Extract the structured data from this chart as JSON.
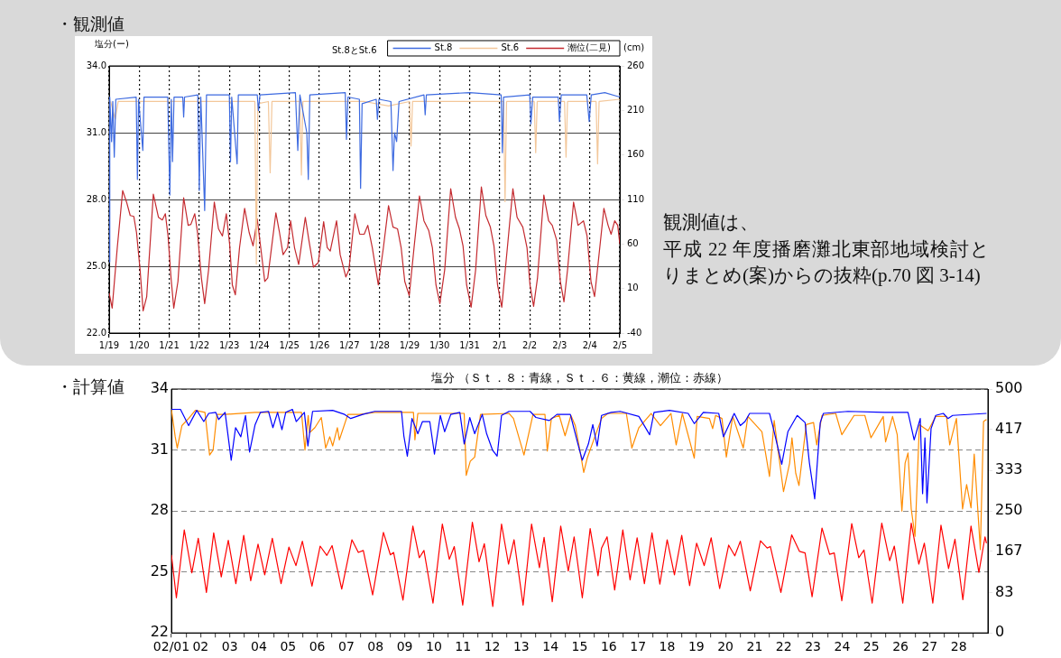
{
  "chart_data": [
    {
      "type": "line",
      "ylabel": "塩分(ー)",
      "y2label": "(cm)",
      "legend_title": "St.8とSt.6",
      "legend": "top right",
      "grid": true,
      "annotations": [
        "・観測値",
        "観測値は、",
        "平成 22 年度播磨灘北東部地域検討とりまとめ(案)からの抜粋(p.70 図 3-14)"
      ],
      "xlim": [
        "--01-19",
        "--02-05"
      ],
      "xticks": [
        {
          "value": "--01-19",
          "label": "1/19"
        },
        {
          "value": "--01-20",
          "label": "1/20"
        },
        {
          "value": "--01-21",
          "label": "1/21"
        },
        {
          "value": "--01-22",
          "label": "1/22"
        },
        {
          "value": "--01-23",
          "label": "1/23"
        },
        {
          "value": "--01-24",
          "label": "1/24"
        },
        {
          "value": "--01-25",
          "label": "1/25"
        },
        {
          "value": "--01-26",
          "label": "1/26"
        },
        {
          "value": "--01-27",
          "label": "1/27"
        },
        {
          "value": "--01-28",
          "label": "1/28"
        },
        {
          "value": "--01-29",
          "label": "1/29"
        },
        {
          "value": "--01-30",
          "label": "1/30"
        },
        {
          "value": "--01-31",
          "label": "1/31"
        },
        {
          "value": "--02-01",
          "label": "2/1"
        },
        {
          "value": "--02-02",
          "label": "2/2"
        },
        {
          "value": "--02-03",
          "label": "2/3"
        },
        {
          "value": "--02-04",
          "label": "2/4"
        },
        {
          "value": "--02-05",
          "label": "2/5"
        }
      ],
      "ylim": [
        22,
        34
      ],
      "yticks": [
        {
          "value": 22,
          "label": "22.0"
        },
        {
          "value": 25,
          "label": "25.0"
        },
        {
          "value": 28,
          "label": "28.0"
        },
        {
          "value": 31,
          "label": "31.0"
        },
        {
          "value": 34,
          "label": "34.0"
        }
      ],
      "y2lim": [
        -40,
        260
      ],
      "y2ticks": [
        -40,
        10,
        60,
        110,
        160,
        210,
        260
      ],
      "series": [
        {
          "name": "St.8",
          "color": "#3d6ae0",
          "x": [
            "--01-19",
            "--01-19T00:29",
            "--01-19T01:55",
            "--01-19T02:53",
            "--01-19T04:05",
            "--01-19T05:17",
            "--01-19T21:36",
            "--01-19T22:34",
            "--01-19T23:31",
            "--01-20T02:53",
            "--01-20T03:50",
            "--01-20T22:48",
            "--01-21T00:29",
            "--01-21T01:41",
            "--01-21T02:38",
            "--01-21T03:50",
            "--01-21T10:48",
            "--01-21T11:31",
            "--01-21T12:14",
            "--01-21T22:48",
            "--01-22",
            "--01-22T01:12",
            "--01-22T04:19",
            "--01-22T05:46",
            "--01-23",
            "--01-23T00:58",
            "--01-23T01:55",
            "--01-23T06:14",
            "--01-23T07:12",
            "--01-23T22:19",
            "--01-23T23:17",
            "--01-24T00:29",
            "--01-25T04:48",
            "--01-25T06:43",
            "--01-25T08:24",
            "--01-25T13:55",
            "--01-25T15:07",
            "--01-25T16:19",
            "--01-26T20:38",
            "--01-26T21:36",
            "--01-26T22:48",
            "--01-27T07:55",
            "--01-27T08:53",
            "--01-27T10:05",
            "--01-27T21:22",
            "--01-27T22:19",
            "--01-27T23:31",
            "--01-28T09:07",
            "--01-28T10:48",
            "--01-28T12:00",
            "--01-28T13:41",
            "--01-28T15:36",
            "--01-29T11:31",
            "--01-29T12:29",
            "--01-29T13:26",
            "--01-31",
            "--02-01T01:12",
            "--02-01T02:10",
            "--02-01T03:07",
            "--02-02",
            "--02-02T00:58",
            "--02-02T02:24",
            "--02-02T22:48",
            "--02-02T23:46",
            "--02-03T01:12",
            "--02-03T21:36",
            "--02-03T23:31",
            "--02-04T01:12",
            "--02-04T12:00",
            "--02-05"
          ],
          "values": [
            25.2,
            32.6,
            30.6,
            32.4,
            29.9,
            32.5,
            32.6,
            28.9,
            32.5,
            30.2,
            32.6,
            32.6,
            28.2,
            32.5,
            29.7,
            32.6,
            32.6,
            31.7,
            32.6,
            32.7,
            28.4,
            32.6,
            27.5,
            32.7,
            32.7,
            29.7,
            32.6,
            29.6,
            32.7,
            32.7,
            32,
            32.7,
            32.8,
            30.2,
            32.7,
            31,
            28.9,
            32.7,
            32.8,
            30.7,
            32.6,
            32.5,
            28.5,
            32.3,
            32.5,
            31.6,
            32.5,
            32.4,
            29.3,
            31,
            30.6,
            32.4,
            32.7,
            31.8,
            32.7,
            32.8,
            32.7,
            30.1,
            32.6,
            32.7,
            31.4,
            32.6,
            32.6,
            31.5,
            32.7,
            32.7,
            31.5,
            32.7,
            32.8,
            32.6
          ]
        },
        {
          "name": "St.6",
          "color": "#f3c79a",
          "x": [
            "--01-19T01:12",
            "--01-19T04:48",
            "--01-19T07:12",
            "--01-22",
            "--01-23T20:24",
            "--01-23T21:36",
            "--01-23T22:48",
            "--01-24T07:12",
            "--01-24T08:38",
            "--01-24T10:05",
            "--01-25T08:24",
            "--01-25T09:36",
            "--01-25T10:48",
            "--01-27T12:00",
            "--01-28T07:12",
            "--01-29",
            "--01-29T01:12",
            "--01-29T02:24",
            "--02-01T03:07",
            "--02-01T04:19",
            "--02-01T05:31",
            "--02-02T03:36",
            "--02-02T04:48",
            "--02-02T06:00",
            "--02-03T03:50",
            "--02-03T05:02",
            "--02-03T06:14",
            "--02-04T05:02",
            "--02-04T06:14",
            "--02-04T07:26",
            "--02-05"
          ],
          "values": [
            32.4,
            31.6,
            32.4,
            32.4,
            32.4,
            25.1,
            32.3,
            32.4,
            29.2,
            32.4,
            32.4,
            29.1,
            32.4,
            32.4,
            32.2,
            32.4,
            30.4,
            32.4,
            32.4,
            27.9,
            32.4,
            32.4,
            30.1,
            32.4,
            32.4,
            29.9,
            32.4,
            32.4,
            29.6,
            32.4,
            32.5
          ]
        },
        {
          "name": "潮位(二見)",
          "color": "#c42a2f",
          "axis": "y2",
          "x": [
            "--01-19",
            "--01-19T02:24",
            "--01-19T06:29",
            "--01-19T10:48",
            "--01-19T13:55",
            "--01-19T16:48",
            "--01-19T19:41",
            "--01-19T21:50",
            "--01-20T00:43",
            "--01-20T03:07",
            "--01-20T06:00",
            "--01-20T11:17",
            "--01-20T15:22",
            "--01-20T18:29",
            "--01-20T20:53",
            "--01-20T23:02",
            "--01-21T01:26",
            "--01-21T03:36",
            "--01-21T06:58",
            "--01-21T11:31",
            "--01-21T15:07",
            "--01-21T17:17",
            "--01-21T20:24",
            "--01-21T22:34",
            "--01-22T01:41",
            "--01-22T04:19",
            "--01-22T07:26",
            "--01-22T12:00",
            "--01-22T15:22",
            "--01-22T18:29",
            "--01-22T21:36",
            "--01-23T00:14",
            "--01-23T02:24",
            "--01-23T04:48",
            "--01-23T08:10",
            "--01-23T12:14",
            "--01-23T15:50",
            "--01-23T18:58",
            "--01-23T22:19",
            "--01-24T01:26",
            "--01-24T04:19",
            "--01-24T06:43",
            "--01-24T13:12",
            "--01-24T16:05",
            "--01-24T18:58",
            "--01-24T22:34",
            "--01-25T00:58",
            "--01-25T04:05",
            "--01-25T07:26",
            "--01-25T12:43",
            "--01-25T15:36",
            "--01-25T19:12",
            "--01-25T23:02",
            "--01-26T03:22",
            "--01-26T06:14",
            "--01-26T08:38",
            "--01-26T13:41",
            "--01-26T16:34",
            "--01-26T21:07",
            "--01-26T23:31",
            "--01-27T04:19",
            "--01-27T08:10",
            "--01-27T11:46",
            "--01-27T14:38",
            "--01-27T18:14",
            "--01-27T23:02",
            "--01-28T03:07",
            "--01-28T07:12",
            "--01-28T10:48",
            "--01-28T14:24",
            "--01-28T17:17",
            "--01-28T20:10",
            "--01-28T23:46",
            "--01-29T03:36",
            "--01-29T07:55",
            "--01-29T11:31",
            "--01-29T15:22",
            "--01-29T18:14",
            "--01-29T21:07",
            "--01-30T00:14",
            "--01-30T04:05",
            "--01-30T08:53",
            "--01-30T12:43",
            "--01-30T15:50",
            "--01-30T18:43",
            "--01-30T21:36",
            "--01-31T01:12",
            "--01-31T04:48",
            "--01-31T09:22",
            "--01-31T12:58",
            "--01-31T16:34",
            "--01-31T19:26",
            "--01-31T22:19",
            "--02-01T01:41",
            "--02-01T05:02",
            "--02-01T10:34",
            "--02-01T13:55",
            "--02-01T18:29",
            "--02-01T21:50",
            "--02-02T00:14",
            "--02-02T03:07",
            "--02-02T06:14",
            "--02-02T11:17",
            "--02-02T15:07",
            "--02-02T18:00",
            "--02-02T21:36",
            "--02-03T00:29",
            "--02-03T03:22",
            "--02-03T06:14",
            "--02-03T11:02",
            "--02-03T14:38",
            "--02-03T18:58",
            "--02-03T21:50",
            "--02-04T00:58",
            "--02-04T03:50",
            "--02-04T06:43",
            "--02-04T11:17",
            "--02-04T14:38",
            "--02-04T17:02",
            "--02-04T19:55",
            "--02-04T22:19",
            "--02-05"
          ],
          "values": [
            5,
            -12,
            56,
            120,
            107,
            92,
            91,
            73,
            31,
            -15,
            1,
            116,
            90,
            87,
            94,
            69,
            22,
            -12,
            18,
            112,
            81,
            82,
            94,
            73,
            22,
            -7,
            31,
            107,
            77,
            69,
            94,
            60,
            14,
            3,
            56,
            100,
            73,
            58,
            88,
            52,
            18,
            22,
            95,
            73,
            48,
            56,
            86,
            56,
            37,
            90,
            64,
            34,
            39,
            85,
            56,
            52,
            86,
            48,
            23,
            31,
            94,
            71,
            71,
            81,
            56,
            14,
            56,
            103,
            79,
            77,
            56,
            18,
            2,
            56,
            114,
            86,
            75,
            56,
            14,
            -7,
            31,
            122,
            90,
            77,
            58,
            14,
            -11,
            31,
            124,
            92,
            79,
            58,
            14,
            -11,
            39,
            122,
            90,
            79,
            56,
            14,
            -10,
            22,
            115,
            86,
            81,
            64,
            18,
            -5,
            31,
            107,
            81,
            86,
            69,
            18,
            1,
            39,
            100,
            81,
            71,
            86,
            81,
            60
          ]
        }
      ]
    },
    {
      "type": "line",
      "title": "塩分 （Ｓｔ．８：青線，Ｓｔ．６：黄線，潮位：赤線）",
      "grid": "y",
      "annotations": [
        "・計算値"
      ],
      "xlim": [
        "--02-01",
        "--03-01"
      ],
      "xticks": [
        {
          "value": "--02-01",
          "label": "02/01"
        },
        {
          "value": "--02-02",
          "label": "02"
        },
        {
          "value": "--02-03",
          "label": "03"
        },
        {
          "value": "--02-04",
          "label": "04"
        },
        {
          "value": "--02-05",
          "label": "05"
        },
        {
          "value": "--02-06",
          "label": "06"
        },
        {
          "value": "--02-07",
          "label": "07"
        },
        {
          "value": "--02-08",
          "label": "08"
        },
        {
          "value": "--02-09",
          "label": "09"
        },
        {
          "value": "--02-10",
          "label": "10"
        },
        {
          "value": "--02-11",
          "label": "11"
        },
        {
          "value": "--02-12",
          "label": "12"
        },
        {
          "value": "--02-13",
          "label": "13"
        },
        {
          "value": "--02-14",
          "label": "14"
        },
        {
          "value": "--02-15",
          "label": "15"
        },
        {
          "value": "--02-16",
          "label": "16"
        },
        {
          "value": "--02-17",
          "label": "17"
        },
        {
          "value": "--02-18",
          "label": "18"
        },
        {
          "value": "--02-19",
          "label": "19"
        },
        {
          "value": "--02-20",
          "label": "20"
        },
        {
          "value": "--02-21",
          "label": "21"
        },
        {
          "value": "--02-22",
          "label": "22"
        },
        {
          "value": "--02-23",
          "label": "23"
        },
        {
          "value": "--02-24",
          "label": "24"
        },
        {
          "value": "--02-25",
          "label": "25"
        },
        {
          "value": "--02-26",
          "label": "26"
        },
        {
          "value": "--02-27",
          "label": "27"
        },
        {
          "value": "--02-28",
          "label": "28"
        },
        {
          "value": "--02-01T12:00",
          "label": null
        },
        {
          "value": "--02-02T12:00",
          "label": null
        },
        {
          "value": "--02-03T12:00",
          "label": null
        },
        {
          "value": "--02-04T12:00",
          "label": null
        },
        {
          "value": "--02-05T12:00",
          "label": null
        },
        {
          "value": "--02-06T12:00",
          "label": null
        },
        {
          "value": "--02-07T12:00",
          "label": null
        },
        {
          "value": "--02-08T12:00",
          "label": null
        },
        {
          "value": "--02-09T12:00",
          "label": null
        },
        {
          "value": "--02-10T12:00",
          "label": null
        },
        {
          "value": "--02-11T12:00",
          "label": null
        },
        {
          "value": "--02-12T12:00",
          "label": null
        },
        {
          "value": "--02-13T12:00",
          "label": null
        },
        {
          "value": "--02-14T12:00",
          "label": null
        },
        {
          "value": "--02-15T12:00",
          "label": null
        },
        {
          "value": "--02-16T12:00",
          "label": null
        },
        {
          "value": "--02-17T12:00",
          "label": null
        },
        {
          "value": "--02-18T12:00",
          "label": null
        },
        {
          "value": "--02-19T12:00",
          "label": null
        },
        {
          "value": "--02-20T12:00",
          "label": null
        },
        {
          "value": "--02-21T12:00",
          "label": null
        },
        {
          "value": "--02-22T12:00",
          "label": null
        },
        {
          "value": "--02-23T12:00",
          "label": null
        },
        {
          "value": "--02-24T12:00",
          "label": null
        },
        {
          "value": "--02-25T12:00",
          "label": null
        },
        {
          "value": "--02-26T12:00",
          "label": null
        },
        {
          "value": "--02-27T12:00",
          "label": null
        },
        {
          "value": "--02-28T12:00",
          "label": null
        }
      ],
      "ylim": [
        22,
        34
      ],
      "yticks": [
        22,
        25,
        28,
        31,
        34
      ],
      "y2lim": [
        0,
        500
      ],
      "y2ticks": [
        0,
        83,
        167,
        250,
        333,
        417,
        500
      ],
      "series": [
        {
          "color": "#0000ff",
          "x": [
            "--02-01",
            "--02-01T07:26",
            "--02-01T14:10",
            "--02-01T20:53",
            "--02-02T02:38",
            "--02-02T06:43",
            "--02-02T12:29",
            "--02-02T14:53",
            "--02-02T20:10",
            "--02-03T01:12",
            "--02-03T04:48",
            "--02-03T09:07",
            "--02-03T12:58",
            "--02-03T16:19",
            "--02-03T20:53",
            "--02-04T01:12",
            "--02-04T07:55",
            "--02-04T11:31",
            "--02-04T15:22",
            "--02-04T18:58",
            "--02-04T22:05",
            "--02-05T03:36",
            "--02-05T06:43",
            "--02-05T13:26",
            "--02-05T16:19",
            "--02-05T20:10",
            "--02-06T12:43",
            "--02-06T22:34",
            "--02-07T03:36",
            "--02-07T13:26",
            "--02-07T23:17",
            "--02-08T21:22",
            "--02-08T23:17",
            "--02-09T02:10",
            "--02-09T06:00",
            "--02-09T10:48",
            "--02-09T14:38",
            "--02-09T20:38",
            "--02-10T00:29",
            "--02-10T05:17",
            "--02-10T08:53",
            "--02-10T13:55",
            "--02-10T21:22",
            "--02-11T00:58",
            "--02-11T05:31",
            "--02-11T09:36",
            "--02-11T15:50",
            "--02-11T19:26",
            "--02-12T00:14",
            "--02-12T04:05",
            "--02-12T07:41",
            "--02-12T13:55",
            "--02-13T07:12",
            "--02-13T12:00",
            "--02-13T23:02",
            "--02-14T05:17",
            "--02-14T16:19",
            "--02-14T22:19",
            "--02-15T02:10",
            "--02-15T07:12",
            "--02-15T10:48",
            "--02-15T14:24",
            "--02-15T18:00",
            "--02-16T01:55",
            "--02-16T09:22",
            "--02-17T00:43",
            "--02-17T09:36",
            "--02-17T13:12",
            "--02-18T01:55",
            "--02-18T17:17",
            "--02-18T22:19",
            "--02-19T05:46",
            "--02-19T18:29",
            "--02-19T22:19",
            "--02-20T07:12",
            "--02-20T12:14",
            "--02-20T16:05",
            "--02-20T19:55",
            "--02-21T12:14",
            "--02-21T14:53",
            "--02-21T22:19",
            "--02-22T03:22",
            "--02-22T11:02",
            "--02-22T17:31",
            "--02-22T21:07",
            "--02-23T01:26",
            "--02-23T06:00",
            "--02-23T08:38",
            "--02-24T04:48",
            "--02-25T11:17",
            "--02-26T06:14",
            "--02-26T11:17",
            "--02-26T16:19",
            "--02-26T18:14",
            "--02-26T20:10",
            "--02-26T21:50",
            "--02-27T01:12",
            "--02-27T05:02",
            "--02-27T11:17",
            "--02-27T15:07",
            "--02-27T18:58",
            "--02-28T22:48"
          ],
          "values": [
            33,
            33,
            32.2,
            32.95,
            32.4,
            32.8,
            32.85,
            32.5,
            32.85,
            30.5,
            32.1,
            31.65,
            32.7,
            30.9,
            32.25,
            32.85,
            32.9,
            32.1,
            32.85,
            32,
            32.85,
            33,
            32.4,
            32.85,
            31.2,
            32.9,
            32.95,
            32.75,
            32.55,
            32.75,
            32.9,
            32.9,
            31.7,
            30.7,
            32.55,
            31.8,
            32.4,
            32.4,
            30.8,
            32.7,
            31.9,
            32.75,
            32.85,
            31.3,
            32.6,
            31.8,
            32.75,
            31.8,
            31,
            30.7,
            32.7,
            32.9,
            32.9,
            32.6,
            32.45,
            32.75,
            32.75,
            31.35,
            30.5,
            31.3,
            32.25,
            31.2,
            32.7,
            32.85,
            32.9,
            32.65,
            31.75,
            32.85,
            32.95,
            32.8,
            32.3,
            32.85,
            32.8,
            31.65,
            32.8,
            32.2,
            32.4,
            32.8,
            32.8,
            32.2,
            30.3,
            31.9,
            32.7,
            32.35,
            30.35,
            28.6,
            32.35,
            32.8,
            32.9,
            32.85,
            32.85,
            31.5,
            32.55,
            28.85,
            31.6,
            28.4,
            32.05,
            32.7,
            32.8,
            32.55,
            32.7,
            32.8
          ]
        },
        {
          "color": "#ff8c00",
          "x": [
            "--02-01",
            "--02-01T03:07",
            "--02-01T04:48",
            "--02-01T08:38",
            "--02-01T14:10",
            "--02-01T19:41",
            "--02-02T03:36",
            "--02-02T07:26",
            "--02-02T10:19",
            "--02-02T13:26",
            "--02-02T20:10",
            "--02-03T20:53",
            "--02-05T11:02",
            "--02-05T13:55",
            "--02-05T16:34",
            "--02-05T17:46",
            "--02-05T22:05",
            "--02-06T03:22",
            "--02-06T06:58",
            "--02-06T10:19",
            "--02-06T12:43",
            "--02-06T16:34",
            "--02-06T18:14",
            "--02-07T01:12",
            "--02-07T10:48",
            "--02-07T23:17",
            "--02-09T07:12",
            "--02-09T08:24",
            "--02-09T10:48",
            "--02-11T00:58",
            "--02-11T02:38",
            "--02-11T06:00",
            "--02-11T09:36",
            "--02-11T14:24",
            "--02-12T13:55",
            "--02-12T17:31",
            "--02-13T02:10",
            "--02-13T09:36",
            "--02-13T19:26",
            "--02-13T21:22",
            "--02-14T00:43",
            "--02-14T07:12",
            "--02-14T12:00",
            "--02-14T16:48",
            "--02-14T20:24",
            "--02-14T23:31",
            "--02-15T03:22",
            "--02-15T06:14",
            "--02-15T11:17",
            "--02-15T18:00",
            "--02-15T23:17",
            "--02-16T14:24",
            "--02-16T18:58",
            "--02-17T00:43",
            "--02-17T10:48",
            "--02-17T18:29",
            "--02-18T03:07",
            "--02-18T07:26",
            "--02-18T12:29",
            "--02-18T22:19",
            "--02-19T00:43",
            "--02-19T10:48",
            "--02-19T13:26",
            "--02-19T15:50",
            "--02-19T21:07",
            "--02-20T00:43",
            "--02-20T06:00",
            "--02-20T14:38",
            "--02-20T18:29",
            "--02-21T06:00",
            "--02-21T12:14",
            "--02-21T16:05",
            "--02-21T23:46",
            "--02-22T04:48",
            "--02-22T06:43",
            "--02-22T09:50",
            "--02-22T12:29",
            "--02-22T18:29",
            "--02-23T00:29",
            "--02-23T03:07",
            "--02-23T07:26",
            "--02-23T18:43",
            "--02-23T23:46",
            "--02-24T09:50",
            "--02-24T18:43",
            "--02-24T23:46",
            "--02-25T09:50",
            "--02-25T11:46",
            "--02-25T17:31",
            "--02-25T21:22",
            "--02-26T01:12",
            "--02-26T03:50",
            "--02-26T06:14",
            "--02-26T08:53",
            "--02-26T12:00",
            "--02-26T15:36",
            "--02-26T22:48",
            "--02-27T05:02",
            "--02-27T13:55",
            "--02-27T16:34",
            "--02-27T22:05",
            "--02-28T03:07",
            "--02-28T06:29",
            "--02-28T10:05",
            "--02-28T12:43",
            "--02-28T17:46",
            "--02-28T20:24",
            "--02-28T22:48"
          ],
          "values": [
            33,
            31.65,
            31.1,
            32.2,
            32.55,
            32.95,
            32.85,
            30.75,
            31,
            32.75,
            32.75,
            32.85,
            32.85,
            31,
            32.7,
            31.85,
            32.1,
            32.6,
            31.1,
            31.65,
            31.2,
            32.1,
            31.5,
            32.75,
            32.75,
            32.85,
            32.85,
            31.5,
            32.8,
            32.8,
            29.75,
            30.45,
            30.65,
            32.75,
            32.8,
            32.55,
            30.75,
            32.75,
            32.75,
            30.95,
            32.55,
            32.7,
            31.7,
            32.7,
            32.2,
            31.2,
            29.9,
            30.6,
            31.45,
            32.55,
            32.8,
            32.8,
            31.1,
            32.1,
            32.8,
            32.2,
            32.8,
            31.25,
            32.8,
            30.6,
            32.65,
            32.55,
            32.05,
            32.7,
            32.55,
            30.65,
            32.65,
            31.1,
            32.65,
            31.9,
            29.7,
            32.45,
            28.95,
            30.35,
            31.6,
            29.85,
            29.25,
            32.25,
            32.35,
            31.25,
            32.7,
            32.8,
            31.75,
            32.7,
            32.7,
            31.6,
            32.65,
            31.4,
            32.65,
            31.75,
            28,
            30.35,
            30.85,
            28.1,
            26.75,
            32.25,
            31.95,
            32.65,
            32.65,
            31.25,
            32.55,
            28.1,
            29.3,
            28.15,
            30.8,
            26.1,
            32.4,
            32.5
          ]
        },
        {
          "color": "#ff0000",
          "axis": "y2",
          "x": [
            "--02-01",
            "--02-01T04:05",
            "--02-01T10:34",
            "--02-01T16:48",
            "--02-01T22:05",
            "--02-02T04:48",
            "--02-02T10:48",
            "--02-02T17:02",
            "--02-02T22:48",
            "--02-03T05:02",
            "--02-03T11:31",
            "--02-03T17:17",
            "--02-03T23:17",
            "--02-04T04:48",
            "--02-04T11:02",
            "--02-04T18:14",
            "--02-05T00:43",
            "--02-05T06:29",
            "--02-05T11:46",
            "--02-05T19:41",
            "--02-06T02:24",
            "--02-06T07:55",
            "--02-06T12:14",
            "--02-06T20:10",
            "--02-07T04:34",
            "--02-07T09:50",
            "--02-07T13:55",
            "--02-07T21:36",
            "--02-08T06:29",
            "--02-08T12:14",
            "--02-08T14:53",
            "--02-08T22:34",
            "--02-09T06:43",
            "--02-09T12:00",
            "--02-09T15:50",
            "--02-09T23:17",
            "--02-10T06:58",
            "--02-10T12:43",
            "--02-10T16:48",
            "--02-10T23:46",
            "--02-11T07:41",
            "--02-11T13:12",
            "--02-11T17:31",
            "--02-12T00:29",
            "--02-12T07:41",
            "--02-12T13:26",
            "--02-12T18:00",
            "--02-13T01:26",
            "--02-13T08:24",
            "--02-13T14:53",
            "--02-13T18:43",
            "--02-14T01:26",
            "--02-14T08:24",
            "--02-14T14:38",
            "--02-14T19:26",
            "--02-15T02:10",
            "--02-15T08:38",
            "--02-15T15:07",
            "--02-15T18:00",
            "--02-15T22:34",
            "--02-16T04:48",
            "--02-16T11:31",
            "--02-16T17:31",
            "--02-16T23:17",
            "--02-17T05:17",
            "--02-17T11:31",
            "--02-17T18:00",
            "--02-18",
            "--02-18T06:00",
            "--02-18T12:00",
            "--02-18T18:29",
            "--02-19T00:14",
            "--02-19T06:29",
            "--02-19T12:14",
            "--02-19T19:12",
            "--02-20T02:38",
            "--02-20T07:41",
            "--02-20T12:14",
            "--02-20T20:24",
            "--02-21T04:48",
            "--02-21T10:19",
            "--02-21T12:58",
            "--02-21T21:36",
            "--02-22T06:29",
            "--02-22T12:58",
            "--02-22T17:31",
            "--02-22T23:17",
            "--02-23T07:26",
            "--02-23T13:41",
            "--02-23T17:31",
            "--02-23T23:46",
            "--02-24T07:55",
            "--02-24T13:41",
            "--02-24T18:00",
            "--02-25T00:43",
            "--02-25T08:38",
            "--02-25T15:07",
            "--02-25T18:58",
            "--02-26T01:55",
            "--02-26T08:53",
            "--02-26T15:07",
            "--02-26T19:41",
            "--02-27T02:38",
            "--02-27T09:22",
            "--02-27T15:36",
            "--02-27T20:53",
            "--02-28T03:22",
            "--02-28T10:05",
            "--02-28T16:34",
            "--02-28T21:36",
            "--02-28T22:48"
          ],
          "values": [
            160,
            72,
            211,
            123,
            194,
            83,
            205,
            115,
            190,
            101,
            200,
            107,
            182,
            119,
            194,
            101,
            176,
            138,
            188,
            96,
            178,
            159,
            179,
            90,
            191,
            165,
            169,
            78,
            206,
            160,
            165,
            67,
            219,
            154,
            169,
            61,
            223,
            151,
            177,
            57,
            227,
            146,
            183,
            54,
            223,
            141,
            191,
            57,
            223,
            134,
            196,
            64,
            219,
            127,
            197,
            72,
            214,
            117,
            174,
            197,
            88,
            211,
            109,
            195,
            101,
            205,
            100,
            191,
            119,
            200,
            97,
            184,
            138,
            195,
            91,
            180,
            158,
            188,
            86,
            189,
            174,
            177,
            83,
            201,
            167,
            164,
            74,
            215,
            161,
            164,
            66,
            224,
            154,
            170,
            61,
            225,
            148,
            178,
            61,
            225,
            141,
            184,
            61,
            221,
            132,
            192,
            68,
            219,
            124,
            197,
            184
          ]
        }
      ]
    }
  ]
}
